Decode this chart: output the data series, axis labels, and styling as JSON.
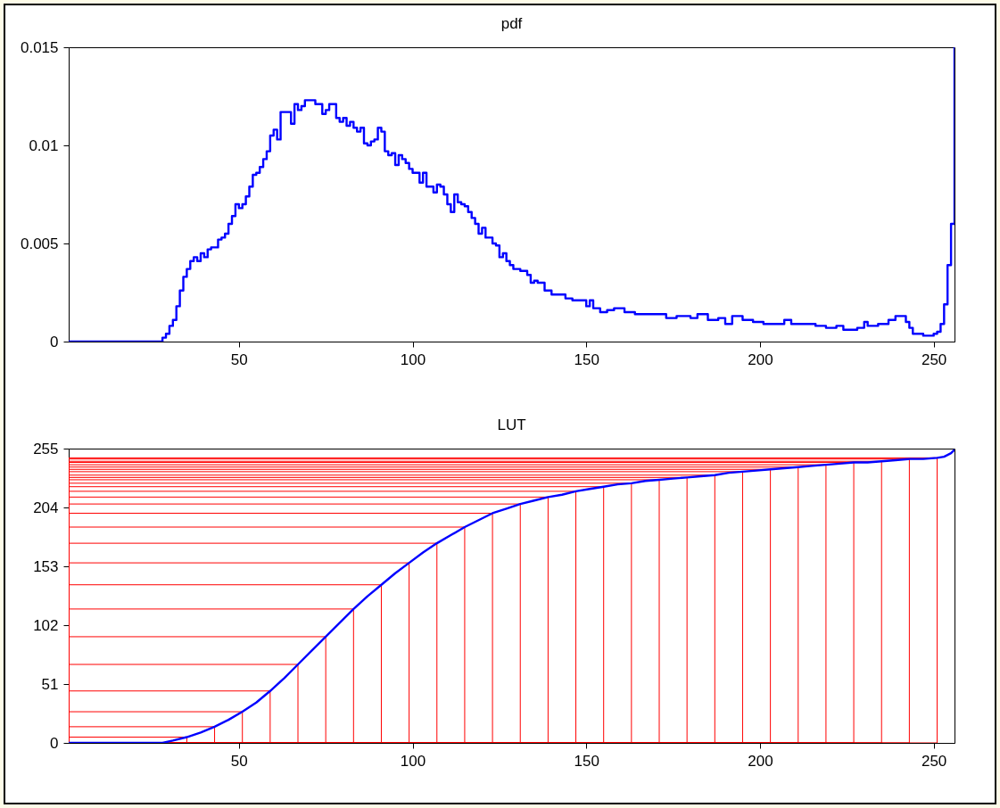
{
  "chart_data": [
    {
      "type": "step",
      "title": "pdf",
      "color": "#0000ff",
      "marker": "none",
      "grid": false,
      "x": [
        1,
        27,
        28,
        29,
        30,
        31,
        32,
        33,
        34,
        35,
        36,
        37,
        38,
        39,
        40,
        41,
        42,
        43,
        44,
        45,
        46,
        47,
        48,
        49,
        50,
        51,
        52,
        53,
        54,
        55,
        56,
        57,
        58,
        59,
        60,
        61,
        62,
        63,
        64,
        65,
        66,
        67,
        68,
        69,
        70,
        71,
        72,
        73,
        74,
        75,
        76,
        77,
        78,
        79,
        80,
        81,
        82,
        83,
        84,
        85,
        86,
        87,
        88,
        89,
        90,
        91,
        92,
        93,
        94,
        95,
        96,
        97,
        98,
        99,
        100,
        101,
        102,
        103,
        104,
        105,
        106,
        107,
        108,
        109,
        110,
        111,
        112,
        113,
        114,
        115,
        116,
        117,
        118,
        119,
        120,
        121,
        122,
        123,
        124,
        125,
        126,
        127,
        128,
        129,
        131,
        133,
        134,
        135,
        136,
        138,
        140,
        144,
        146,
        150,
        151,
        152,
        154,
        156,
        158,
        161,
        164,
        173,
        176,
        180,
        182,
        185,
        188,
        190,
        192,
        195,
        198,
        201,
        207,
        209,
        216,
        219,
        222,
        224,
        228,
        230,
        231,
        234,
        237,
        239,
        242,
        243,
        244,
        247,
        250,
        251,
        252,
        253,
        254,
        255,
        256
      ],
      "values": [
        0,
        0,
        0.0002,
        0.0004,
        0.0008,
        0.0011,
        0.0018,
        0.0026,
        0.0033,
        0.0037,
        0.0041,
        0.0043,
        0.0041,
        0.0045,
        0.0043,
        0.0047,
        0.0048,
        0.0048,
        0.0052,
        0.0053,
        0.0055,
        0.006,
        0.0064,
        0.007,
        0.0068,
        0.007,
        0.0074,
        0.0079,
        0.0085,
        0.0086,
        0.0089,
        0.0093,
        0.0097,
        0.0105,
        0.0108,
        0.0103,
        0.0117,
        0.0117,
        0.0117,
        0.0111,
        0.0121,
        0.0118,
        0.012,
        0.0123,
        0.0123,
        0.0123,
        0.0121,
        0.0121,
        0.0116,
        0.0118,
        0.0121,
        0.0121,
        0.0114,
        0.0112,
        0.0114,
        0.011,
        0.0112,
        0.0109,
        0.0107,
        0.0109,
        0.0101,
        0.01,
        0.0102,
        0.0103,
        0.0109,
        0.0107,
        0.0097,
        0.0095,
        0.0096,
        0.009,
        0.0095,
        0.0093,
        0.0091,
        0.0088,
        0.0086,
        0.0086,
        0.0081,
        0.0086,
        0.0079,
        0.0079,
        0.0076,
        0.008,
        0.0079,
        0.0075,
        0.007,
        0.0066,
        0.0075,
        0.0071,
        0.007,
        0.0069,
        0.0066,
        0.0063,
        0.006,
        0.0055,
        0.0058,
        0.0053,
        0.0053,
        0.005,
        0.0049,
        0.0043,
        0.0045,
        0.0041,
        0.0039,
        0.0037,
        0.0036,
        0.0034,
        0.003,
        0.0031,
        0.003,
        0.0026,
        0.0024,
        0.0022,
        0.0021,
        0.0018,
        0.0021,
        0.0017,
        0.0015,
        0.0016,
        0.0017,
        0.0015,
        0.0014,
        0.0012,
        0.0013,
        0.0012,
        0.0014,
        0.0011,
        0.0012,
        0.0009,
        0.0013,
        0.0011,
        0.001,
        0.0009,
        0.0011,
        0.0009,
        0.0008,
        0.0007,
        0.0008,
        0.0006,
        0.0007,
        0.001,
        0.0008,
        0.0009,
        0.0011,
        0.0013,
        0.001,
        0.0007,
        0.0004,
        0.0003,
        0.0004,
        0.0005,
        0.0009,
        0.0019,
        0.0039,
        0.006,
        0.015
      ],
      "xlim": [
        1,
        256
      ],
      "ylim": [
        0,
        0.015
      ],
      "xticks": [
        50,
        100,
        150,
        200,
        250
      ],
      "yticks": [
        0,
        0.005,
        0.01,
        0.015
      ]
    },
    {
      "type": "line",
      "title": "LUT",
      "marker": "none",
      "grid": false,
      "series": [
        {
          "type": "line",
          "color": "#ff0000",
          "x": [
            35,
            35,
            1,
            1,
            43,
            43,
            1,
            1,
            51,
            51,
            1,
            1,
            59,
            59,
            1,
            1,
            67,
            67,
            1,
            1,
            75,
            75,
            1,
            1,
            83,
            83,
            1,
            1,
            91,
            91,
            1,
            1,
            99,
            99,
            1,
            1,
            107,
            107,
            1,
            1,
            115,
            115,
            1,
            1,
            123,
            123,
            1,
            1,
            131,
            131,
            1,
            1,
            139,
            139,
            1,
            1,
            147,
            147,
            1,
            1,
            155,
            155,
            1,
            1,
            163,
            163,
            1,
            1,
            171,
            171,
            1,
            1,
            179,
            179,
            1,
            1,
            187,
            187,
            1,
            1,
            195,
            195,
            1,
            1,
            203,
            203,
            1,
            1,
            211,
            211,
            1,
            1,
            219,
            219,
            1,
            1,
            227,
            227,
            1,
            1,
            235,
            235,
            1,
            1,
            243,
            243,
            1,
            1,
            251,
            251,
            1,
            1
          ],
          "values": [
            0,
            5,
            5,
            0,
            0,
            14,
            14,
            0,
            0,
            27,
            27,
            0,
            0,
            45,
            45,
            0,
            0,
            68,
            68,
            0,
            0,
            92,
            92,
            0,
            0,
            116,
            116,
            0,
            0,
            137,
            137,
            0,
            0,
            156,
            156,
            0,
            0,
            173,
            173,
            0,
            0,
            187,
            187,
            0,
            0,
            199,
            199,
            0,
            0,
            207,
            207,
            0,
            0,
            213,
            213,
            0,
            0,
            218,
            218,
            0,
            0,
            222,
            222,
            0,
            0,
            225,
            225,
            0,
            0,
            228,
            228,
            0,
            0,
            230,
            230,
            0,
            0,
            232,
            232,
            0,
            0,
            235,
            235,
            0,
            0,
            237,
            237,
            0,
            0,
            239,
            239,
            0,
            0,
            241,
            241,
            0,
            0,
            243,
            243,
            0,
            0,
            244,
            244,
            0,
            0,
            246,
            246,
            0,
            0,
            247,
            247,
            0
          ]
        },
        {
          "color": "#0000ff",
          "x": [
            1,
            28,
            31,
            35,
            39,
            43,
            47,
            51,
            55,
            59,
            63,
            67,
            71,
            75,
            79,
            83,
            87,
            91,
            95,
            99,
            103,
            107,
            111,
            115,
            119,
            123,
            127,
            131,
            135,
            139,
            143,
            147,
            151,
            155,
            159,
            163,
            167,
            171,
            175,
            179,
            183,
            187,
            191,
            195,
            199,
            203,
            207,
            211,
            215,
            219,
            223,
            227,
            231,
            235,
            239,
            243,
            247,
            251,
            253,
            255,
            256
          ],
          "values": [
            0,
            0,
            2,
            5,
            9,
            14,
            20,
            27,
            35,
            45,
            56,
            68,
            80,
            92,
            104,
            116,
            127,
            137,
            147,
            156,
            165,
            173,
            180,
            187,
            193,
            199,
            203,
            207,
            210,
            213,
            215,
            218,
            220,
            222,
            224,
            225,
            227,
            228,
            229,
            230,
            231,
            232,
            234,
            235,
            236,
            237,
            238,
            239,
            240,
            241,
            242,
            243,
            243,
            244,
            245,
            246,
            246,
            247,
            248,
            251,
            254
          ]
        }
      ],
      "xlim": [
        1,
        256
      ],
      "ylim": [
        0,
        255
      ],
      "xticks": [
        50,
        100,
        150,
        200,
        250
      ],
      "yticks": [
        0,
        51,
        102,
        153,
        204,
        255
      ]
    }
  ]
}
